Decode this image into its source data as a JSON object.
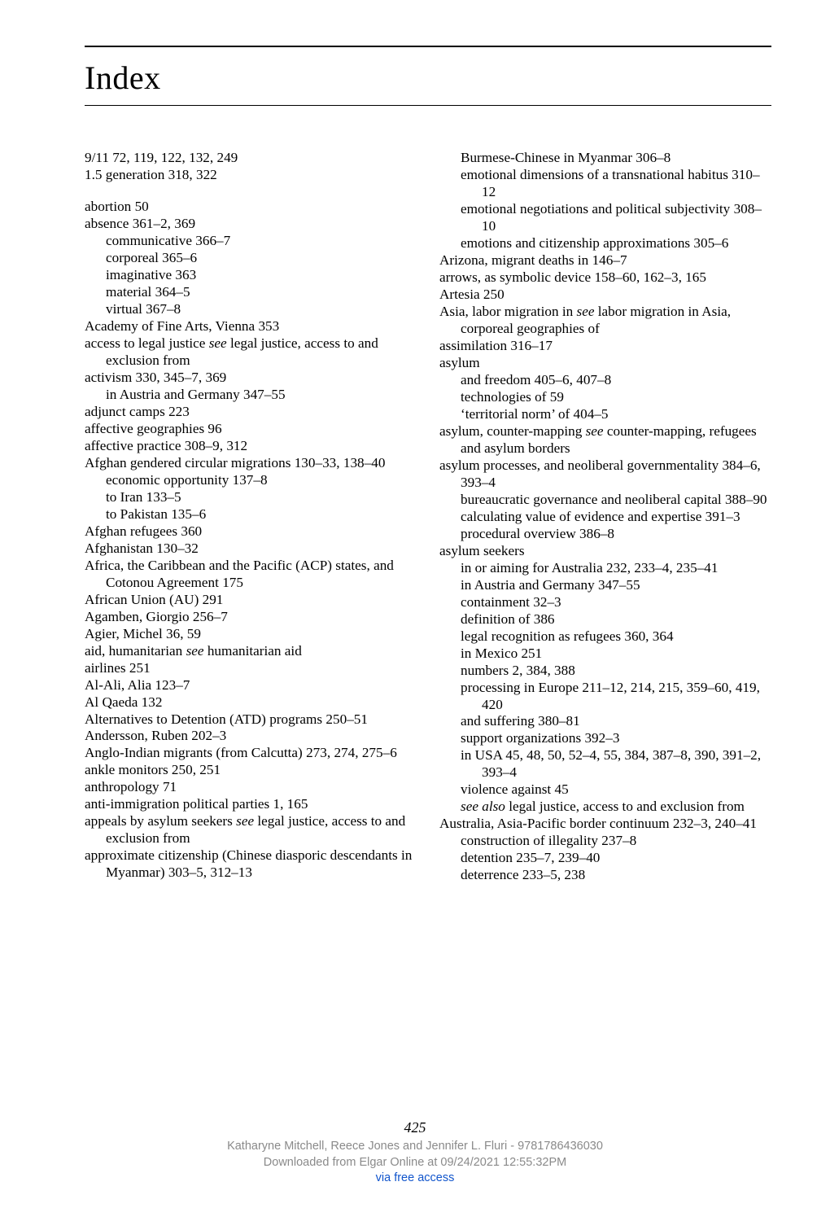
{
  "title": "Index",
  "page_number": "425",
  "footer_lines": [
    "Katharyne Mitchell, Reece Jones and Jennifer L. Fluri - 9781786436030",
    "Downloaded from Elgar Online at 09/24/2021 12:55:32PM",
    "via free access"
  ],
  "entries": [
    {
      "t": "entry",
      "text": "9/11 72, 119, 122, 132, 249"
    },
    {
      "t": "entry",
      "text": "1.5 generation 318, 322"
    },
    {
      "t": "gap"
    },
    {
      "t": "entry",
      "text": "abortion 50"
    },
    {
      "t": "entry",
      "text": "absence 361–2, 369"
    },
    {
      "t": "sub",
      "text": "communicative 366–7"
    },
    {
      "t": "sub",
      "text": "corporeal 365–6"
    },
    {
      "t": "sub",
      "text": "imaginative 363"
    },
    {
      "t": "sub",
      "text": "material 364–5"
    },
    {
      "t": "sub",
      "text": "virtual 367–8"
    },
    {
      "t": "entry",
      "text": "Academy of Fine Arts, Vienna 353"
    },
    {
      "t": "entry",
      "html": "access to legal justice <em class='see'>see</em> legal justice, access to and exclusion from"
    },
    {
      "t": "entry",
      "text": "activism 330, 345–7, 369"
    },
    {
      "t": "sub",
      "text": "in Austria and Germany 347–55"
    },
    {
      "t": "entry",
      "text": "adjunct camps 223"
    },
    {
      "t": "entry",
      "text": "affective geographies 96"
    },
    {
      "t": "entry",
      "text": "affective practice 308–9, 312"
    },
    {
      "t": "entry",
      "text": "Afghan gendered circular migrations 130–33, 138–40"
    },
    {
      "t": "sub",
      "text": "economic opportunity 137–8"
    },
    {
      "t": "sub",
      "text": "to Iran 133–5"
    },
    {
      "t": "sub",
      "text": "to Pakistan 135–6"
    },
    {
      "t": "entry",
      "text": "Afghan refugees 360"
    },
    {
      "t": "entry",
      "text": "Afghanistan 130–32"
    },
    {
      "t": "entry",
      "text": "Africa, the Caribbean and the Pacific (ACP) states, and Cotonou Agreement 175"
    },
    {
      "t": "entry",
      "text": "African Union (AU) 291"
    },
    {
      "t": "entry",
      "text": "Agamben, Giorgio 256–7"
    },
    {
      "t": "entry",
      "text": "Agier, Michel 36, 59"
    },
    {
      "t": "entry",
      "html": "aid, humanitarian <em class='see'>see</em> humanitarian aid"
    },
    {
      "t": "entry",
      "text": "airlines 251"
    },
    {
      "t": "entry",
      "text": "Al-Ali, Alia 123–7"
    },
    {
      "t": "entry",
      "text": "Al Qaeda 132"
    },
    {
      "t": "entry",
      "text": "Alternatives to Detention (ATD) programs 250–51"
    },
    {
      "t": "entry",
      "text": "Andersson, Ruben 202–3"
    },
    {
      "t": "entry",
      "text": "Anglo-Indian migrants (from Calcutta) 273, 274, 275–6"
    },
    {
      "t": "entry",
      "text": "ankle monitors 250, 251"
    },
    {
      "t": "entry",
      "text": "anthropology 71"
    },
    {
      "t": "entry",
      "text": "anti-immigration political parties 1, 165"
    },
    {
      "t": "entry",
      "html": "appeals by asylum seekers <em class='see'>see</em> legal justice, access to and exclusion from"
    },
    {
      "t": "entry",
      "text": "approximate citizenship (Chinese diasporic descendants in Myanmar) 303–5, 312–13"
    },
    {
      "t": "sub",
      "text": "Burmese-Chinese in Myanmar 306–8"
    },
    {
      "t": "sub",
      "text": "emotional dimensions of a transnational habitus 310–12"
    },
    {
      "t": "sub",
      "text": "emotional negotiations and political subjectivity 308–10"
    },
    {
      "t": "sub",
      "text": "emotions and citizenship approximations 305–6"
    },
    {
      "t": "entry",
      "text": "Arizona, migrant deaths in 146–7"
    },
    {
      "t": "entry",
      "text": "arrows, as symbolic device 158–60, 162–3, 165"
    },
    {
      "t": "entry",
      "text": "Artesia 250"
    },
    {
      "t": "entry",
      "html": "Asia, labor migration in <em class='see'>see</em> labor migration in Asia, corporeal geographies of"
    },
    {
      "t": "entry",
      "text": "assimilation 316–17"
    },
    {
      "t": "entry",
      "text": "asylum"
    },
    {
      "t": "sub",
      "text": "and freedom 405–6, 407–8"
    },
    {
      "t": "sub",
      "text": "technologies of 59"
    },
    {
      "t": "sub",
      "text": "‘territorial norm’ of 404–5"
    },
    {
      "t": "entry",
      "html": "asylum, counter-mapping <em class='see'>see</em> counter-mapping, refugees and asylum borders"
    },
    {
      "t": "entry",
      "text": "asylum processes, and neoliberal governmentality 384–6, 393–4"
    },
    {
      "t": "sub",
      "text": "bureaucratic governance and neoliberal capital 388–90"
    },
    {
      "t": "sub",
      "text": "calculating value of evidence and expertise 391–3"
    },
    {
      "t": "sub",
      "text": "procedural overview 386–8"
    },
    {
      "t": "entry",
      "text": "asylum seekers"
    },
    {
      "t": "sub",
      "text": "in or aiming for Australia 232, 233–4, 235–41"
    },
    {
      "t": "sub",
      "text": "in Austria and Germany 347–55"
    },
    {
      "t": "sub",
      "text": "containment 32–3"
    },
    {
      "t": "sub",
      "text": "definition of 386"
    },
    {
      "t": "sub",
      "text": "legal recognition as refugees 360, 364"
    },
    {
      "t": "sub",
      "text": "in Mexico 251"
    },
    {
      "t": "sub",
      "text": "numbers 2, 384, 388"
    },
    {
      "t": "sub",
      "text": "processing in Europe 211–12, 214, 215, 359–60, 419, 420"
    },
    {
      "t": "sub",
      "text": "and suffering 380–81"
    },
    {
      "t": "sub",
      "text": "support organizations 392–3"
    },
    {
      "t": "sub",
      "text": "in USA 45, 48, 50, 52–4, 55, 384, 387–8, 390, 391–2, 393–4"
    },
    {
      "t": "sub",
      "text": "violence against 45"
    },
    {
      "t": "sub",
      "html": "<em class='see'>see also</em> legal justice, access to and exclusion from"
    },
    {
      "t": "entry",
      "text": "Australia, Asia-Pacific border continuum 232–3, 240–41"
    },
    {
      "t": "sub",
      "text": "construction of illegality 237–8"
    },
    {
      "t": "sub",
      "text": "detention 235–7, 239–40"
    },
    {
      "t": "sub",
      "text": "deterrence 233–5, 238"
    }
  ]
}
